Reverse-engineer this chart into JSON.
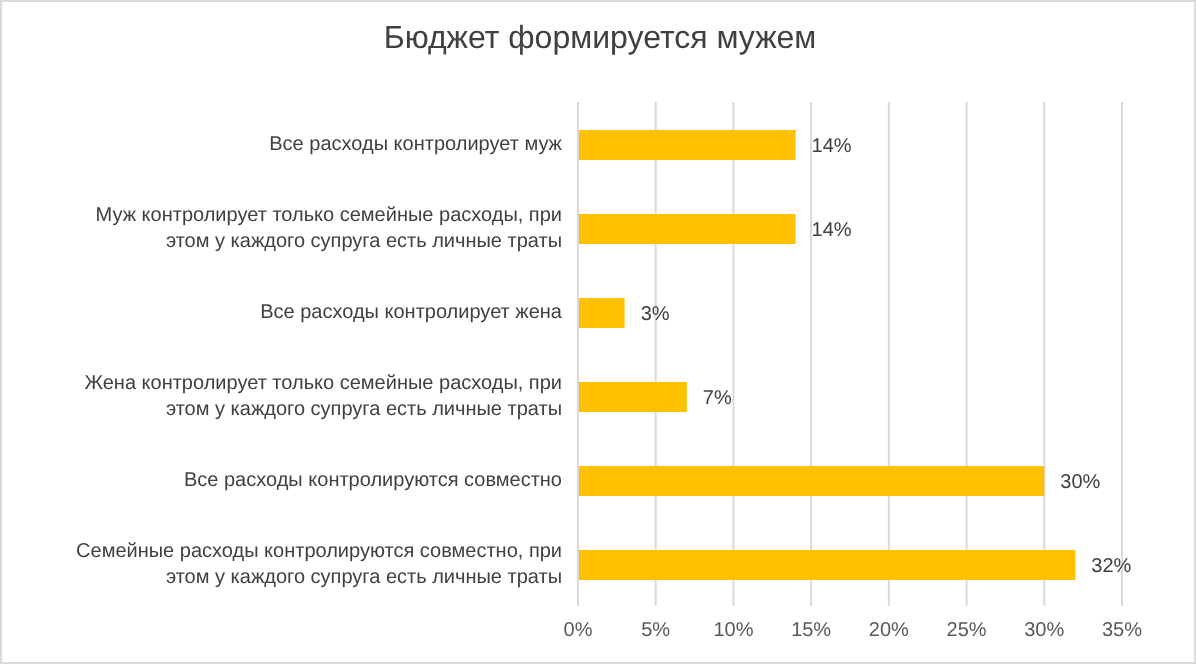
{
  "chart_data": {
    "type": "bar",
    "orientation": "horizontal",
    "title": "Бюджет формируется мужем",
    "categories": [
      "Все расходы контролирует муж",
      "Муж контролирует только семейные расходы, при этом у каждого супруга есть личные траты",
      "Все расходы контролирует жена",
      "Жена контролирует только семейные расходы, при этом у каждого супруга есть личные траты",
      "Все расходы контролируются совместно",
      "Семейные расходы контролируются совместно, при этом у каждого супруга есть личные траты"
    ],
    "values": [
      14,
      14,
      3,
      7,
      30,
      32
    ],
    "value_labels": [
      "14%",
      "14%",
      "3%",
      "7%",
      "30%",
      "32%"
    ],
    "color": "#ffc000",
    "xlim": [
      0,
      35
    ],
    "xticks": [
      {
        "value": 0,
        "label": "0%"
      },
      {
        "value": 5,
        "label": "5%"
      },
      {
        "value": 10,
        "label": "10%"
      },
      {
        "value": 15,
        "label": "15%"
      },
      {
        "value": 20,
        "label": "20%"
      },
      {
        "value": 25,
        "label": "25%"
      },
      {
        "value": 30,
        "label": "30%"
      },
      {
        "value": 35,
        "label": "35%"
      }
    ],
    "grid": "x"
  }
}
